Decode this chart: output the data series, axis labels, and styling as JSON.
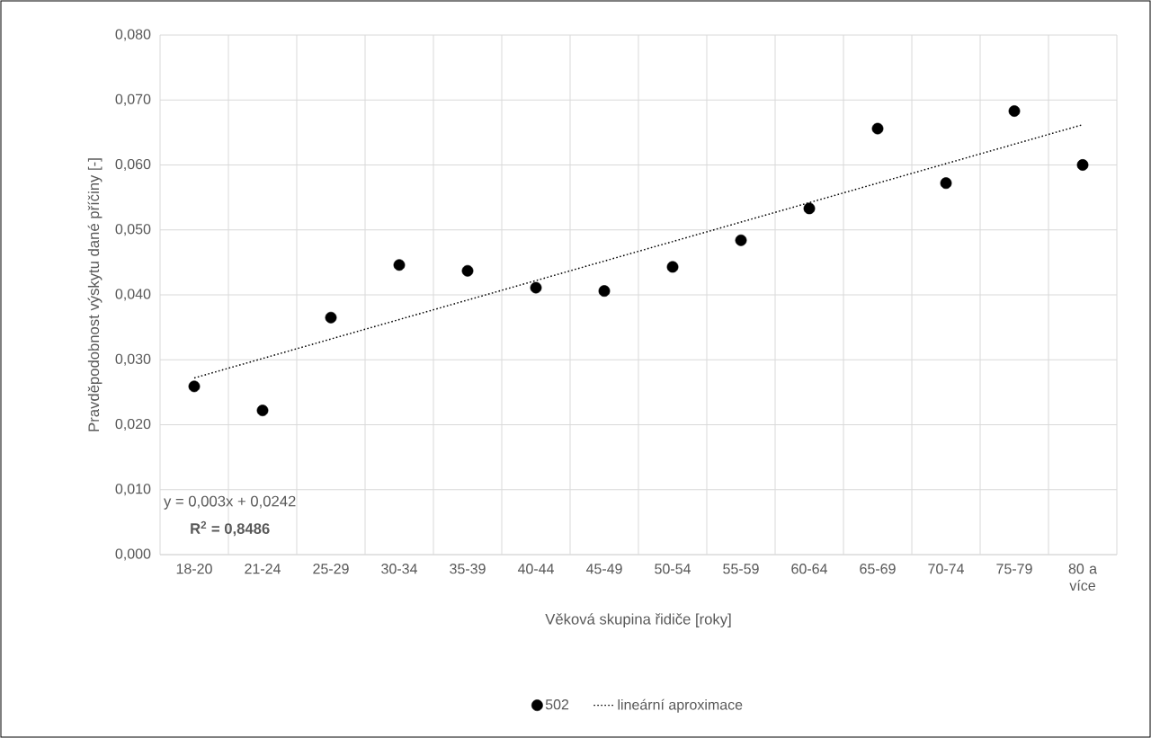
{
  "chart_data": {
    "type": "scatter",
    "xlabel": "Věková skupina řidiče [roky]",
    "ylabel": "Pravděpodobnost výskytu dané příčiny [-]",
    "categories": [
      "18-20",
      "21-24",
      "25-29",
      "30-34",
      "35-39",
      "40-44",
      "45-49",
      "50-54",
      "55-59",
      "60-64",
      "65-69",
      "70-74",
      "75-79",
      "80 a více"
    ],
    "series": [
      {
        "name": "502",
        "color": "#000000",
        "marker": "circle",
        "values": [
          0.0259,
          0.0222,
          0.0365,
          0.0446,
          0.0437,
          0.0411,
          0.0406,
          0.0443,
          0.0484,
          0.0533,
          0.0656,
          0.0572,
          0.0683,
          0.06
        ]
      },
      {
        "name": "lineární aproximace",
        "type": "line",
        "color": "#000000",
        "marker": "none",
        "line_style": "dotted",
        "values": [
          0.0272,
          0.0302,
          0.0332,
          0.0362,
          0.0392,
          0.0422,
          0.0452,
          0.0482,
          0.0512,
          0.0542,
          0.0572,
          0.0602,
          0.0632,
          0.0662
        ]
      }
    ],
    "ylim": [
      0,
      0.08
    ],
    "yticks": [
      {
        "value": 0,
        "label": "0,000"
      },
      {
        "value": 0.01,
        "label": "0,010"
      },
      {
        "value": 0.02,
        "label": "0,020"
      },
      {
        "value": 0.03,
        "label": "0,030"
      },
      {
        "value": 0.04,
        "label": "0,040"
      },
      {
        "value": 0.05,
        "label": "0,050"
      },
      {
        "value": 0.06,
        "label": "0,060"
      },
      {
        "value": 0.07,
        "label": "0,070"
      },
      {
        "value": 0.08,
        "label": "0,080"
      }
    ],
    "grid": true,
    "legend": "bottom",
    "annotations": [
      "y = 0,003x + 0,0242",
      "**R$^{2}$ = 0,8486**"
    ]
  }
}
